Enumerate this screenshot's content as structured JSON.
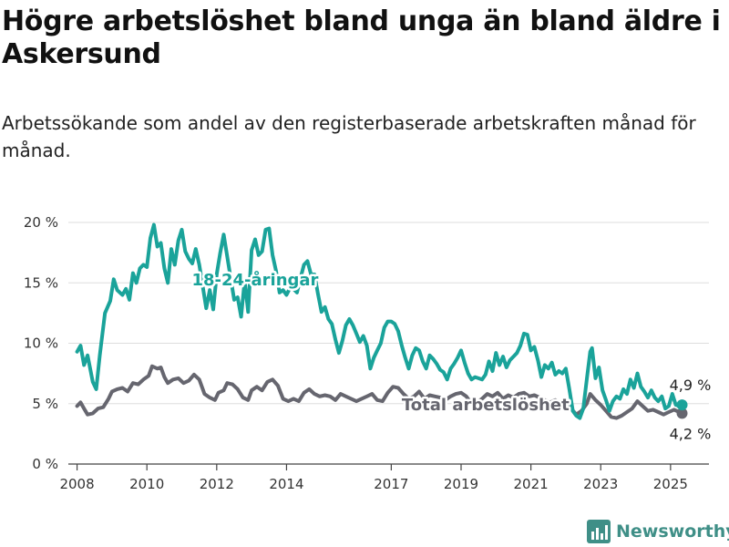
{
  "header": {
    "title": "Högre arbetslöshet bland unga än bland äldre i Askersund",
    "subtitle": "Arbetssökande som andel av den registerbaserade arbetskraften månad för månad."
  },
  "brand": {
    "name": "Newsworthy",
    "icon": "bar-chart-logo-icon",
    "color": "#3f8f87"
  },
  "chart_data": {
    "type": "line",
    "title": "Högre arbetslöshet bland unga än bland äldre i Askersund",
    "subtitle": "Arbetssökande som andel av den registerbaserade arbetskraften månad för månad.",
    "xlabel": "",
    "ylabel": "",
    "x_range": [
      2007.75,
      2026.1
    ],
    "ylim": [
      0,
      20
    ],
    "y_ticks": [
      0,
      5,
      10,
      15,
      20
    ],
    "y_tick_labels": [
      "0 %",
      "5 %",
      "10 %",
      "15 %",
      "20 %"
    ],
    "x_ticks": [
      2008,
      2010,
      2012,
      2014,
      2017,
      2019,
      2021,
      2023,
      2025
    ],
    "x_tick_labels": [
      "2008",
      "2010",
      "2012",
      "2014",
      "2017",
      "2019",
      "2021",
      "2023",
      "2025"
    ],
    "grid": true,
    "legend": "none",
    "series": [
      {
        "name": "18-24-åringar",
        "color": "#1aa39a",
        "end_label": "4,9 %",
        "points": [
          [
            2008.0,
            9.3
          ],
          [
            2008.1,
            9.8
          ],
          [
            2008.2,
            8.2
          ],
          [
            2008.3,
            9.0
          ],
          [
            2008.45,
            6.8
          ],
          [
            2008.55,
            6.2
          ],
          [
            2008.65,
            9.0
          ],
          [
            2008.8,
            12.5
          ],
          [
            2008.95,
            13.5
          ],
          [
            2009.05,
            15.3
          ],
          [
            2009.15,
            14.4
          ],
          [
            2009.3,
            14.0
          ],
          [
            2009.4,
            14.5
          ],
          [
            2009.5,
            13.6
          ],
          [
            2009.6,
            15.8
          ],
          [
            2009.7,
            15.0
          ],
          [
            2009.8,
            16.2
          ],
          [
            2009.9,
            16.5
          ],
          [
            2010.0,
            16.3
          ],
          [
            2010.1,
            18.7
          ],
          [
            2010.2,
            19.8
          ],
          [
            2010.3,
            18.0
          ],
          [
            2010.4,
            18.3
          ],
          [
            2010.5,
            16.2
          ],
          [
            2010.6,
            15.0
          ],
          [
            2010.7,
            17.8
          ],
          [
            2010.8,
            16.5
          ],
          [
            2010.9,
            18.5
          ],
          [
            2011.0,
            19.4
          ],
          [
            2011.1,
            17.6
          ],
          [
            2011.2,
            17.0
          ],
          [
            2011.3,
            16.6
          ],
          [
            2011.4,
            17.8
          ],
          [
            2011.5,
            16.5
          ],
          [
            2011.6,
            14.7
          ],
          [
            2011.7,
            12.9
          ],
          [
            2011.8,
            14.4
          ],
          [
            2011.9,
            12.8
          ],
          [
            2012.0,
            15.7
          ],
          [
            2012.1,
            17.5
          ],
          [
            2012.2,
            19.0
          ],
          [
            2012.3,
            17.2
          ],
          [
            2012.4,
            15.4
          ],
          [
            2012.5,
            13.6
          ],
          [
            2012.6,
            13.8
          ],
          [
            2012.7,
            12.2
          ],
          [
            2012.8,
            15.2
          ],
          [
            2012.9,
            12.6
          ],
          [
            2013.0,
            17.7
          ],
          [
            2013.1,
            18.6
          ],
          [
            2013.2,
            17.3
          ],
          [
            2013.3,
            17.6
          ],
          [
            2013.4,
            19.4
          ],
          [
            2013.5,
            19.5
          ],
          [
            2013.6,
            17.3
          ],
          [
            2013.7,
            16.0
          ],
          [
            2013.8,
            14.2
          ],
          [
            2013.9,
            14.4
          ],
          [
            2014.0,
            14.0
          ],
          [
            2014.1,
            14.6
          ],
          [
            2014.2,
            14.5
          ],
          [
            2014.3,
            14.2
          ],
          [
            2014.4,
            15.4
          ],
          [
            2014.5,
            16.5
          ],
          [
            2014.6,
            16.8
          ],
          [
            2014.7,
            15.7
          ],
          [
            2014.8,
            15.7
          ],
          [
            2014.9,
            14.1
          ],
          [
            2015.0,
            12.6
          ],
          [
            2015.1,
            13.0
          ],
          [
            2015.2,
            12.0
          ],
          [
            2015.3,
            11.6
          ],
          [
            2015.4,
            10.3
          ],
          [
            2015.5,
            9.2
          ],
          [
            2015.6,
            10.2
          ],
          [
            2015.7,
            11.5
          ],
          [
            2015.8,
            12.0
          ],
          [
            2015.9,
            11.5
          ],
          [
            2016.0,
            10.8
          ],
          [
            2016.1,
            10.1
          ],
          [
            2016.2,
            10.6
          ],
          [
            2016.3,
            9.8
          ],
          [
            2016.4,
            7.9
          ],
          [
            2016.5,
            8.8
          ],
          [
            2016.6,
            9.4
          ],
          [
            2016.7,
            10.0
          ],
          [
            2016.8,
            11.3
          ],
          [
            2016.9,
            11.8
          ],
          [
            2017.0,
            11.8
          ],
          [
            2017.1,
            11.6
          ],
          [
            2017.2,
            11.0
          ],
          [
            2017.3,
            9.8
          ],
          [
            2017.4,
            8.8
          ],
          [
            2017.5,
            7.9
          ],
          [
            2017.6,
            9.0
          ],
          [
            2017.7,
            9.6
          ],
          [
            2017.8,
            9.4
          ],
          [
            2017.9,
            8.5
          ],
          [
            2018.0,
            7.9
          ],
          [
            2018.1,
            9.0
          ],
          [
            2018.2,
            8.7
          ],
          [
            2018.3,
            8.3
          ],
          [
            2018.4,
            7.8
          ],
          [
            2018.5,
            7.6
          ],
          [
            2018.6,
            7.0
          ],
          [
            2018.7,
            7.9
          ],
          [
            2018.8,
            8.3
          ],
          [
            2018.9,
            8.8
          ],
          [
            2019.0,
            9.4
          ],
          [
            2019.1,
            8.4
          ],
          [
            2019.2,
            7.5
          ],
          [
            2019.3,
            7.0
          ],
          [
            2019.4,
            7.2
          ],
          [
            2019.5,
            7.1
          ],
          [
            2019.6,
            7.0
          ],
          [
            2019.7,
            7.4
          ],
          [
            2019.8,
            8.5
          ],
          [
            2019.9,
            7.7
          ],
          [
            2020.0,
            9.2
          ],
          [
            2020.1,
            8.2
          ],
          [
            2020.2,
            8.9
          ],
          [
            2020.3,
            8.0
          ],
          [
            2020.4,
            8.6
          ],
          [
            2020.5,
            8.9
          ],
          [
            2020.6,
            9.2
          ],
          [
            2020.7,
            9.8
          ],
          [
            2020.8,
            10.8
          ],
          [
            2020.9,
            10.7
          ],
          [
            2021.0,
            9.4
          ],
          [
            2021.1,
            9.7
          ],
          [
            2021.2,
            8.6
          ],
          [
            2021.3,
            7.2
          ],
          [
            2021.4,
            8.2
          ],
          [
            2021.5,
            7.9
          ],
          [
            2021.6,
            8.4
          ],
          [
            2021.7,
            7.4
          ],
          [
            2021.8,
            7.7
          ],
          [
            2021.9,
            7.5
          ],
          [
            2022.0,
            7.9
          ],
          [
            2022.1,
            6.2
          ],
          [
            2022.2,
            4.4
          ],
          [
            2022.3,
            4.0
          ],
          [
            2022.4,
            3.8
          ],
          [
            2022.5,
            4.6
          ],
          [
            2022.6,
            7.0
          ],
          [
            2022.7,
            9.3
          ],
          [
            2022.75,
            9.6
          ],
          [
            2022.85,
            7.1
          ],
          [
            2022.95,
            8.0
          ],
          [
            2023.05,
            6.1
          ],
          [
            2023.15,
            5.3
          ],
          [
            2023.25,
            4.4
          ],
          [
            2023.35,
            5.2
          ],
          [
            2023.45,
            5.6
          ],
          [
            2023.55,
            5.4
          ],
          [
            2023.65,
            6.2
          ],
          [
            2023.75,
            5.8
          ],
          [
            2023.85,
            7.0
          ],
          [
            2023.95,
            6.3
          ],
          [
            2024.05,
            7.5
          ],
          [
            2024.15,
            6.4
          ],
          [
            2024.25,
            6.0
          ],
          [
            2024.35,
            5.5
          ],
          [
            2024.45,
            6.1
          ],
          [
            2024.55,
            5.5
          ],
          [
            2024.65,
            5.2
          ],
          [
            2024.75,
            5.6
          ],
          [
            2024.85,
            4.6
          ],
          [
            2024.95,
            4.8
          ],
          [
            2025.05,
            5.8
          ],
          [
            2025.15,
            4.9
          ],
          [
            2025.25,
            4.8
          ],
          [
            2025.33,
            4.9
          ]
        ]
      },
      {
        "name": "Total arbetslöshet",
        "color": "#66666f",
        "end_label": "4,2 %",
        "points": [
          [
            2008.0,
            4.8
          ],
          [
            2008.1,
            5.1
          ],
          [
            2008.2,
            4.6
          ],
          [
            2008.3,
            4.1
          ],
          [
            2008.45,
            4.2
          ],
          [
            2008.6,
            4.6
          ],
          [
            2008.75,
            4.7
          ],
          [
            2008.9,
            5.4
          ],
          [
            2009.0,
            6.0
          ],
          [
            2009.15,
            6.2
          ],
          [
            2009.3,
            6.3
          ],
          [
            2009.45,
            6.0
          ],
          [
            2009.6,
            6.7
          ],
          [
            2009.75,
            6.6
          ],
          [
            2009.9,
            7.0
          ],
          [
            2010.05,
            7.3
          ],
          [
            2010.15,
            8.1
          ],
          [
            2010.3,
            7.9
          ],
          [
            2010.4,
            8.0
          ],
          [
            2010.5,
            7.2
          ],
          [
            2010.6,
            6.7
          ],
          [
            2010.75,
            7.0
          ],
          [
            2010.9,
            7.1
          ],
          [
            2011.05,
            6.7
          ],
          [
            2011.2,
            6.9
          ],
          [
            2011.35,
            7.4
          ],
          [
            2011.5,
            7.0
          ],
          [
            2011.65,
            5.8
          ],
          [
            2011.8,
            5.5
          ],
          [
            2011.95,
            5.3
          ],
          [
            2012.05,
            5.9
          ],
          [
            2012.2,
            6.1
          ],
          [
            2012.3,
            6.7
          ],
          [
            2012.45,
            6.6
          ],
          [
            2012.6,
            6.2
          ],
          [
            2012.75,
            5.5
          ],
          [
            2012.9,
            5.3
          ],
          [
            2013.0,
            6.1
          ],
          [
            2013.15,
            6.4
          ],
          [
            2013.3,
            6.1
          ],
          [
            2013.45,
            6.8
          ],
          [
            2013.6,
            7.0
          ],
          [
            2013.75,
            6.5
          ],
          [
            2013.9,
            5.4
          ],
          [
            2014.05,
            5.2
          ],
          [
            2014.2,
            5.4
          ],
          [
            2014.35,
            5.2
          ],
          [
            2014.5,
            5.9
          ],
          [
            2014.65,
            6.2
          ],
          [
            2014.8,
            5.8
          ],
          [
            2014.95,
            5.6
          ],
          [
            2015.1,
            5.7
          ],
          [
            2015.25,
            5.6
          ],
          [
            2015.4,
            5.3
          ],
          [
            2015.55,
            5.8
          ],
          [
            2015.7,
            5.6
          ],
          [
            2015.85,
            5.4
          ],
          [
            2016.0,
            5.2
          ],
          [
            2016.15,
            5.4
          ],
          [
            2016.3,
            5.6
          ],
          [
            2016.45,
            5.8
          ],
          [
            2016.6,
            5.3
          ],
          [
            2016.75,
            5.2
          ],
          [
            2016.9,
            5.9
          ],
          [
            2017.05,
            6.4
          ],
          [
            2017.2,
            6.3
          ],
          [
            2017.35,
            5.8
          ],
          [
            2017.5,
            5.4
          ],
          [
            2017.65,
            5.6
          ],
          [
            2017.8,
            6.0
          ],
          [
            2017.95,
            5.4
          ],
          [
            2018.1,
            5.7
          ],
          [
            2018.25,
            5.6
          ],
          [
            2018.4,
            5.5
          ],
          [
            2018.55,
            5.3
          ],
          [
            2018.7,
            5.6
          ],
          [
            2018.85,
            5.8
          ],
          [
            2019.0,
            5.9
          ],
          [
            2019.15,
            5.6
          ],
          [
            2019.3,
            5.0
          ],
          [
            2019.45,
            5.1
          ],
          [
            2019.6,
            5.4
          ],
          [
            2019.75,
            5.8
          ],
          [
            2019.9,
            5.6
          ],
          [
            2020.05,
            5.9
          ],
          [
            2020.2,
            5.4
          ],
          [
            2020.35,
            5.7
          ],
          [
            2020.5,
            5.5
          ],
          [
            2020.65,
            5.8
          ],
          [
            2020.8,
            5.9
          ],
          [
            2020.95,
            5.6
          ],
          [
            2021.1,
            5.7
          ],
          [
            2021.25,
            5.5
          ],
          [
            2021.4,
            5.3
          ],
          [
            2021.55,
            5.1
          ],
          [
            2021.7,
            5.3
          ],
          [
            2021.85,
            5.0
          ],
          [
            2022.0,
            4.9
          ],
          [
            2022.15,
            4.6
          ],
          [
            2022.3,
            4.1
          ],
          [
            2022.45,
            4.4
          ],
          [
            2022.6,
            5.0
          ],
          [
            2022.7,
            5.8
          ],
          [
            2022.85,
            5.3
          ],
          [
            2023.0,
            4.9
          ],
          [
            2023.15,
            4.4
          ],
          [
            2023.3,
            3.9
          ],
          [
            2023.45,
            3.8
          ],
          [
            2023.6,
            4.0
          ],
          [
            2023.75,
            4.3
          ],
          [
            2023.9,
            4.6
          ],
          [
            2024.05,
            5.2
          ],
          [
            2024.2,
            4.8
          ],
          [
            2024.35,
            4.4
          ],
          [
            2024.5,
            4.5
          ],
          [
            2024.65,
            4.3
          ],
          [
            2024.8,
            4.1
          ],
          [
            2024.95,
            4.3
          ],
          [
            2025.1,
            4.5
          ],
          [
            2025.25,
            4.3
          ],
          [
            2025.33,
            4.2
          ]
        ]
      }
    ]
  }
}
